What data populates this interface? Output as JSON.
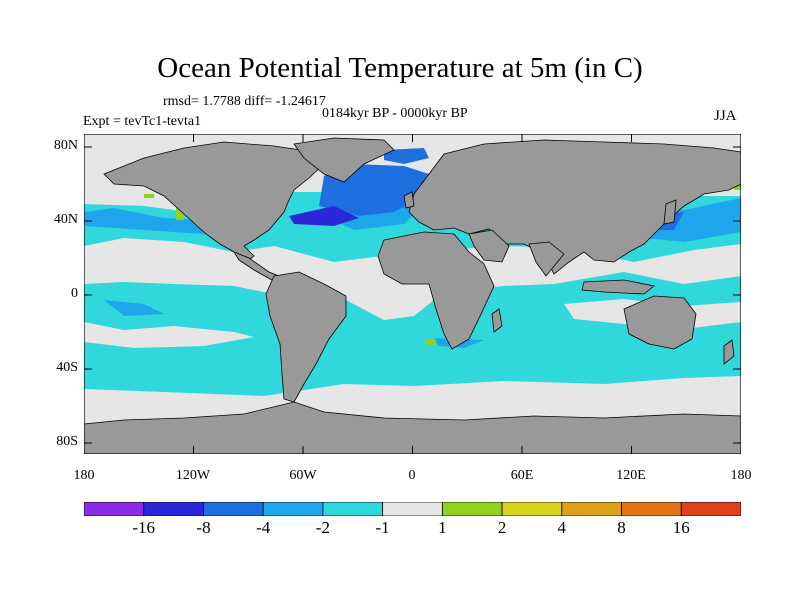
{
  "title": "Ocean Potential Temperature at 5m (in C)",
  "stats": "rmsd= 1.7788 diff= -1.24617",
  "period": "0184kyr BP - 0000kyr BP",
  "experiment": "Expt = tevTc1-tevta1",
  "season": "JJA",
  "axes": {
    "lat_labels": [
      "80N",
      "40N",
      "0",
      "40S",
      "80S"
    ],
    "lon_labels": [
      "180",
      "120W",
      "60W",
      "0",
      "60E",
      "120E",
      "180"
    ]
  },
  "colorbar": {
    "colors": [
      "#8b2be8",
      "#2a28d8",
      "#1e6fe0",
      "#1ea6ec",
      "#2ed8d8",
      "#e6e6e6",
      "#8fd11b",
      "#d6d21d",
      "#dba31a",
      "#e07514",
      "#e0401a"
    ],
    "labels": [
      "-16",
      "-8",
      "-4",
      "-2",
      "-1",
      "1",
      "2",
      "4",
      "8",
      "16"
    ]
  },
  "colors": {
    "land": "#999999",
    "ocean_base": "#30d8dc",
    "neutral": "#e6e6e6",
    "blue_mid": "#1ea6ec",
    "blue_dark": "#1e6fe0",
    "blue_deep": "#2a28d8"
  }
}
